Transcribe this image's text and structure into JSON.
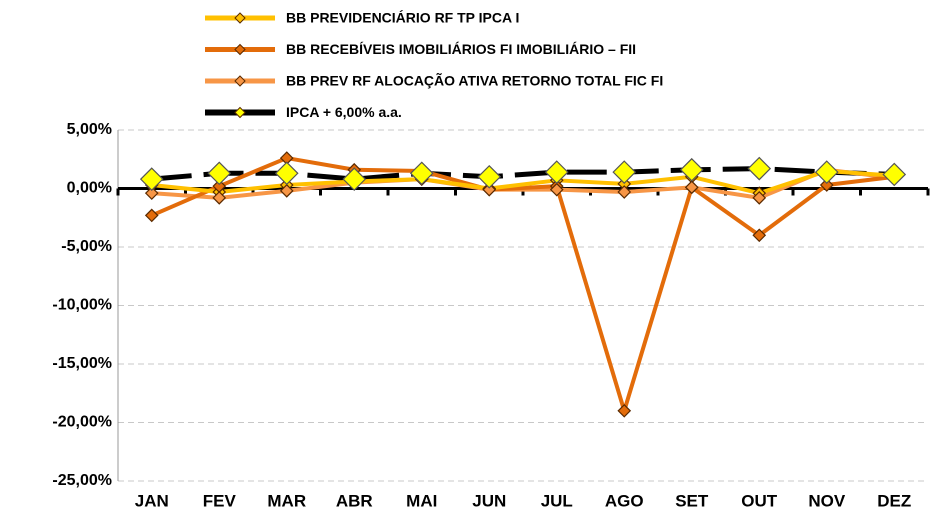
{
  "chart_data": {
    "type": "line",
    "categories": [
      "JAN",
      "FEV",
      "MAR",
      "ABR",
      "MAI",
      "JUN",
      "JUL",
      "AGO",
      "SET",
      "OUT",
      "NOV",
      "DEZ"
    ],
    "series": [
      {
        "name": "BB PREVIDENCIÁRIO RF TP IPCA I",
        "color": "#FFC000",
        "values": [
          0.3,
          -0.3,
          0.3,
          0.6,
          0.8,
          0.0,
          0.7,
          0.4,
          1.0,
          -0.4,
          1.5,
          1.1
        ]
      },
      {
        "name": "BB RECEBÍVEIS IMOBILIÁRIOS FI IMOBILIÁRIO – FII",
        "color": "#E36C0A",
        "values": [
          -2.3,
          0.2,
          2.6,
          1.6,
          1.5,
          -0.1,
          0.2,
          -19.0,
          0.1,
          -4.0,
          0.3,
          1.0
        ]
      },
      {
        "name": "BB PREV RF ALOCAÇÃO ATIVA RETORNO TOTAL FIC FI",
        "color": "#F79646",
        "values": [
          -0.4,
          -0.8,
          -0.2,
          0.5,
          0.8,
          -0.1,
          -0.1,
          -0.3,
          0.1,
          -0.8,
          1.6,
          0.9
        ]
      },
      {
        "name": "IPCA + 6,00% a.a.",
        "color": "#000000",
        "values": [
          0.8,
          1.3,
          1.3,
          0.8,
          1.3,
          1.0,
          1.4,
          1.4,
          1.6,
          1.7,
          1.4,
          1.2
        ]
      }
    ],
    "ylim": [
      -25,
      5
    ],
    "yticks": [
      {
        "value": -25,
        "label": "-25,00%"
      },
      {
        "value": -20,
        "label": "-20,00%"
      },
      {
        "value": -15,
        "label": "-15,00%"
      },
      {
        "value": -10,
        "label": "-10,00%"
      },
      {
        "value": -5,
        "label": "-5,00%"
      },
      {
        "value": 0,
        "label": "0,00%"
      },
      {
        "value": 5,
        "label": "5,00%"
      }
    ],
    "grid": true
  }
}
